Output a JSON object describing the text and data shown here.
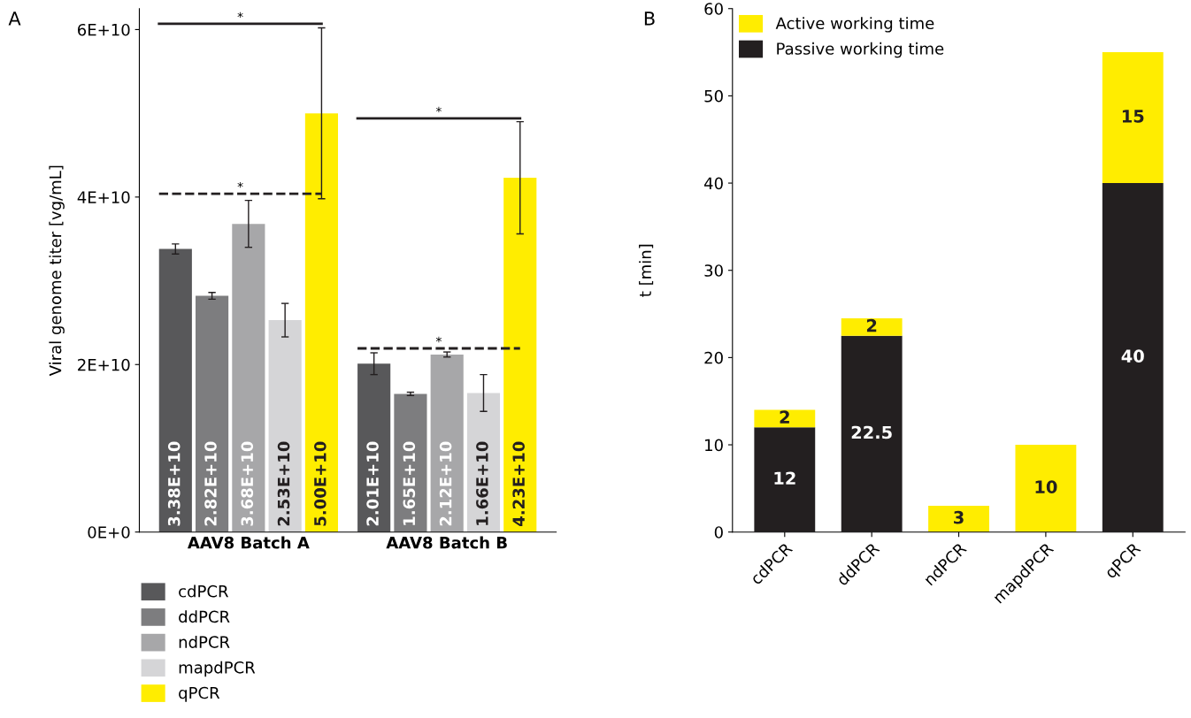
{
  "chart_data": [
    {
      "type": "bar",
      "ylabel": "Viral genome titer [vg/mL]",
      "annotations": [
        "A",
        "*",
        "*",
        "*",
        "*"
      ],
      "categories": [
        "AAV8 Batch A",
        "AAV8 Batch B"
      ],
      "ylim": [
        0,
        62500000000
      ],
      "yticks": [
        {
          "value": 0,
          "label": "0E+0"
        },
        {
          "value": 20000000000,
          "label": "2E+10"
        },
        {
          "value": 40000000000,
          "label": "4E+10"
        },
        {
          "value": 60000000000,
          "label": "6E+10"
        }
      ],
      "legend": "bottom",
      "grid": false,
      "series": [
        {
          "name": "cdPCR",
          "color": "#58585a",
          "values": [
            33800000000,
            20100000000
          ],
          "errors": [
            600000000,
            1300000000
          ],
          "value_labels": [
            "3.38E+10",
            "2.01E+10"
          ]
        },
        {
          "name": "ddPCR",
          "color": "#7d7d7f",
          "values": [
            28200000000,
            16500000000
          ],
          "errors": [
            400000000,
            200000000
          ],
          "value_labels": [
            "2.82E+10",
            "1.65E+10"
          ]
        },
        {
          "name": "ndPCR",
          "color": "#a7a7a9",
          "values": [
            36800000000,
            21200000000
          ],
          "errors": [
            2800000000,
            300000000
          ],
          "value_labels": [
            "3.68E+10",
            "2.12E+10"
          ]
        },
        {
          "name": "mapdPCR",
          "color": "#d5d5d7",
          "values": [
            25300000000,
            16600000000
          ],
          "errors": [
            2000000000,
            2200000000
          ],
          "value_labels": [
            "2.53E+10",
            "1.66E+10"
          ]
        },
        {
          "name": "qPCR",
          "color": "#ffed00",
          "values": [
            50000000000,
            42300000000
          ],
          "errors": [
            10200000000,
            6700000000
          ],
          "value_labels": [
            "5.00E+10",
            "4.23E+10"
          ]
        }
      ]
    },
    {
      "type": "bar",
      "stacked": true,
      "ylabel": "t [min]",
      "annotations": [
        "B"
      ],
      "categories": [
        "cdPCR",
        "ddPCR",
        "ndPCR",
        "mapdPCR",
        "qPCR"
      ],
      "ylim": [
        0,
        60
      ],
      "yticks": [
        0,
        10,
        20,
        30,
        40,
        50,
        60
      ],
      "legend": "top left",
      "grid": false,
      "series": [
        {
          "name": "Passive working time",
          "color": "#231f20",
          "values": [
            12,
            22.5,
            0,
            0,
            40
          ],
          "value_labels": [
            "12",
            "22.5",
            null,
            null,
            "40"
          ]
        },
        {
          "name": "Active working time",
          "color": "#ffed00",
          "values": [
            2,
            2,
            3,
            10,
            15
          ],
          "value_labels": [
            "2",
            "2",
            "3",
            "10",
            "15"
          ]
        }
      ]
    }
  ]
}
